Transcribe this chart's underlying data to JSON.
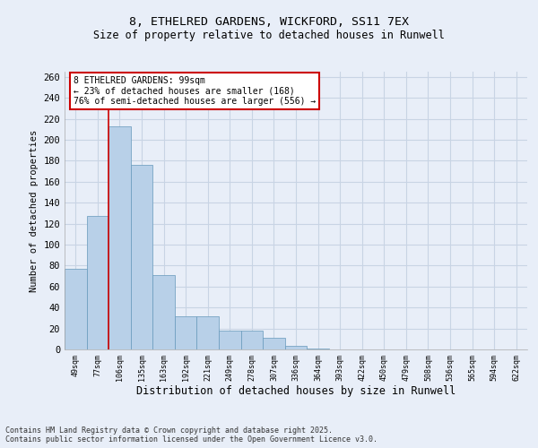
{
  "title1": "8, ETHELRED GARDENS, WICKFORD, SS11 7EX",
  "title2": "Size of property relative to detached houses in Runwell",
  "xlabel": "Distribution of detached houses by size in Runwell",
  "ylabel": "Number of detached properties",
  "categories": [
    "49sqm",
    "77sqm",
    "106sqm",
    "135sqm",
    "163sqm",
    "192sqm",
    "221sqm",
    "249sqm",
    "278sqm",
    "307sqm",
    "336sqm",
    "364sqm",
    "393sqm",
    "422sqm",
    "450sqm",
    "479sqm",
    "508sqm",
    "536sqm",
    "565sqm",
    "594sqm",
    "622sqm"
  ],
  "values": [
    77,
    127,
    213,
    176,
    71,
    32,
    32,
    18,
    18,
    11,
    3,
    1,
    0,
    0,
    0,
    0,
    0,
    0,
    0,
    0,
    0
  ],
  "bar_color": "#b8d0e8",
  "bar_edge_color": "#6699bb",
  "grid_color": "#c8d4e4",
  "background_color": "#e8eef8",
  "annotation_text": "8 ETHELRED GARDENS: 99sqm\n← 23% of detached houses are smaller (168)\n76% of semi-detached houses are larger (556) →",
  "annotation_box_color": "#ffffff",
  "annotation_border_color": "#cc0000",
  "footer_text": "Contains HM Land Registry data © Crown copyright and database right 2025.\nContains public sector information licensed under the Open Government Licence v3.0.",
  "ylim": [
    0,
    265
  ],
  "yticks": [
    0,
    20,
    40,
    60,
    80,
    100,
    120,
    140,
    160,
    180,
    200,
    220,
    240,
    260
  ],
  "red_line_index": 1.5
}
